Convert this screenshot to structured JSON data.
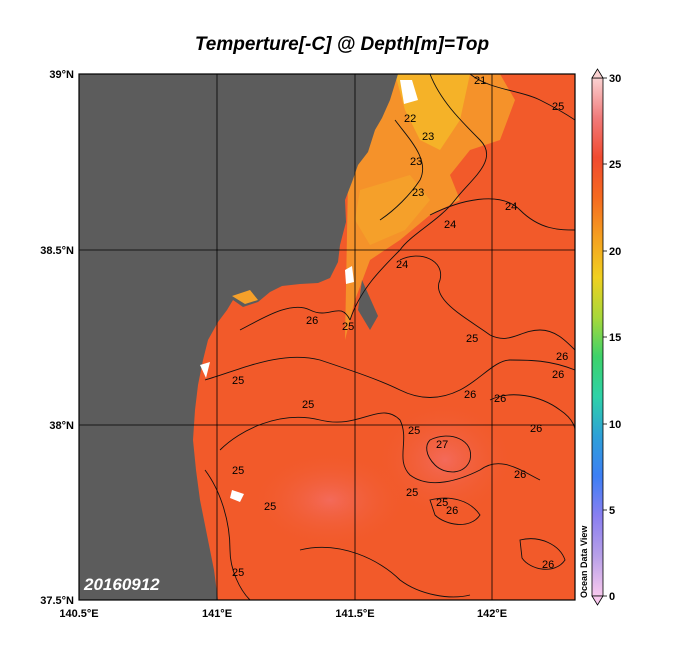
{
  "title": "Temperture[-C] @ Depth[m]=Top",
  "date_stamp": "20160912",
  "watermark": "Ocean Data View",
  "map": {
    "lat_ticks": [
      "39°N",
      "38.5°N",
      "38°N",
      "37.5°N"
    ],
    "lon_ticks": [
      "140.5°E",
      "141°E",
      "141.5°E",
      "142°E"
    ],
    "lat_range": [
      37.5,
      39.0
    ],
    "lon_range": [
      140.5,
      142.3
    ],
    "land_color": "#5c5c5c",
    "ocean_color": "#f25a2a",
    "grid": true
  },
  "colorbar": {
    "ticks": [
      "30",
      "25",
      "20",
      "15",
      "10",
      "5",
      "0"
    ],
    "range": [
      0,
      30
    ],
    "colors": [
      "#f8c8ee",
      "#b8a0e8",
      "#8a7ff0",
      "#3d7ff5",
      "#2ea0d8",
      "#2ed2a8",
      "#3dd26a",
      "#a8d83a",
      "#f0d020",
      "#f5a020",
      "#f56a20",
      "#f04a30",
      "#f07a7a",
      "#fbd2d2"
    ]
  },
  "contour_labels": [
    "21",
    "22",
    "23",
    "23",
    "23",
    "24",
    "24",
    "24",
    "25",
    "25",
    "25",
    "25",
    "25",
    "25",
    "25",
    "25",
    "25",
    "25",
    "25",
    "26",
    "26",
    "26",
    "26",
    "26",
    "26",
    "26",
    "26",
    "26",
    "27"
  ]
}
